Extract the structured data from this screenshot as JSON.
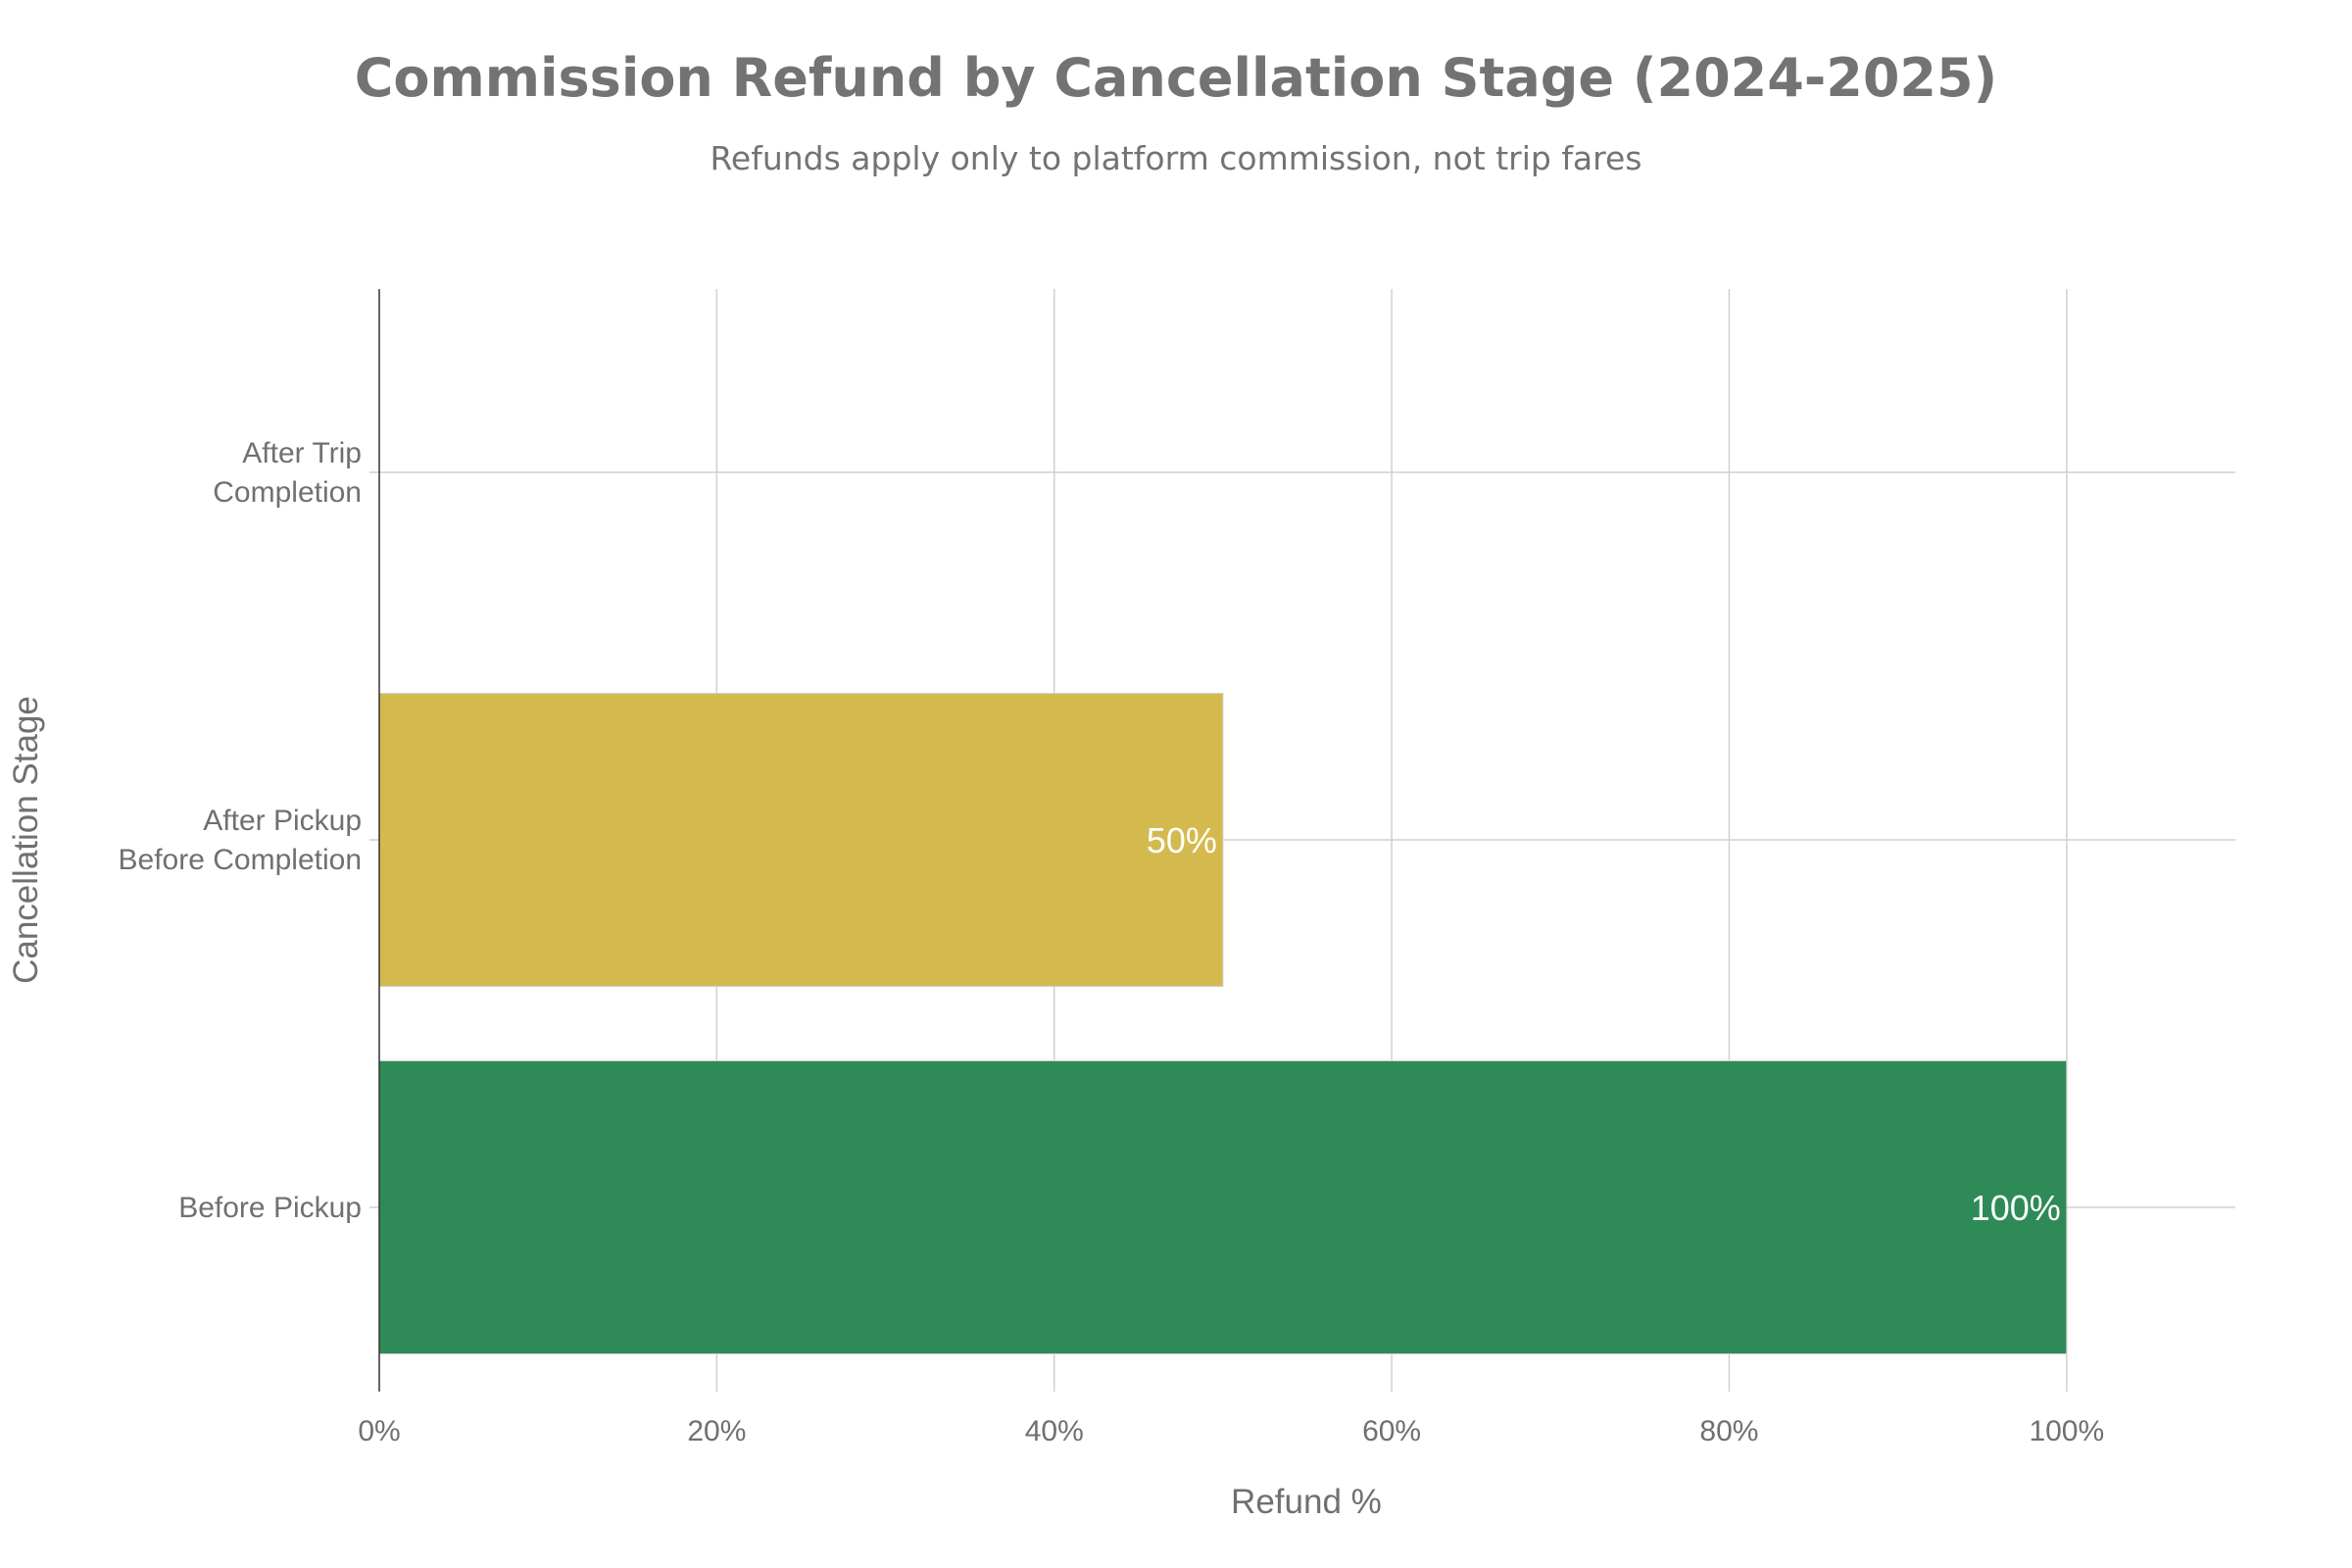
{
  "chart_data": {
    "type": "bar",
    "orientation": "horizontal",
    "title": "Commission Refund by Cancellation Stage (2024-2025)",
    "subtitle": "Refunds apply only to platform commission, not trip fares",
    "xlabel": "Refund %",
    "ylabel": "Cancellation Stage",
    "categories": [
      [
        "Before Pickup"
      ],
      [
        "After Pickup",
        "Before Completion"
      ],
      [
        "After Trip",
        "Completion"
      ]
    ],
    "values": [
      100,
      50,
      0
    ],
    "data_labels": [
      "100%",
      "50%",
      ""
    ],
    "colors": [
      "#2E8B57",
      "#D4BA4E",
      "#B22222"
    ],
    "xlim": [
      0,
      110
    ],
    "xticks": [
      0,
      20,
      40,
      60,
      80,
      100
    ],
    "xtick_labels": [
      "0%",
      "20%",
      "40%",
      "60%",
      "80%",
      "100%"
    ],
    "grid": true,
    "legend": "none"
  }
}
